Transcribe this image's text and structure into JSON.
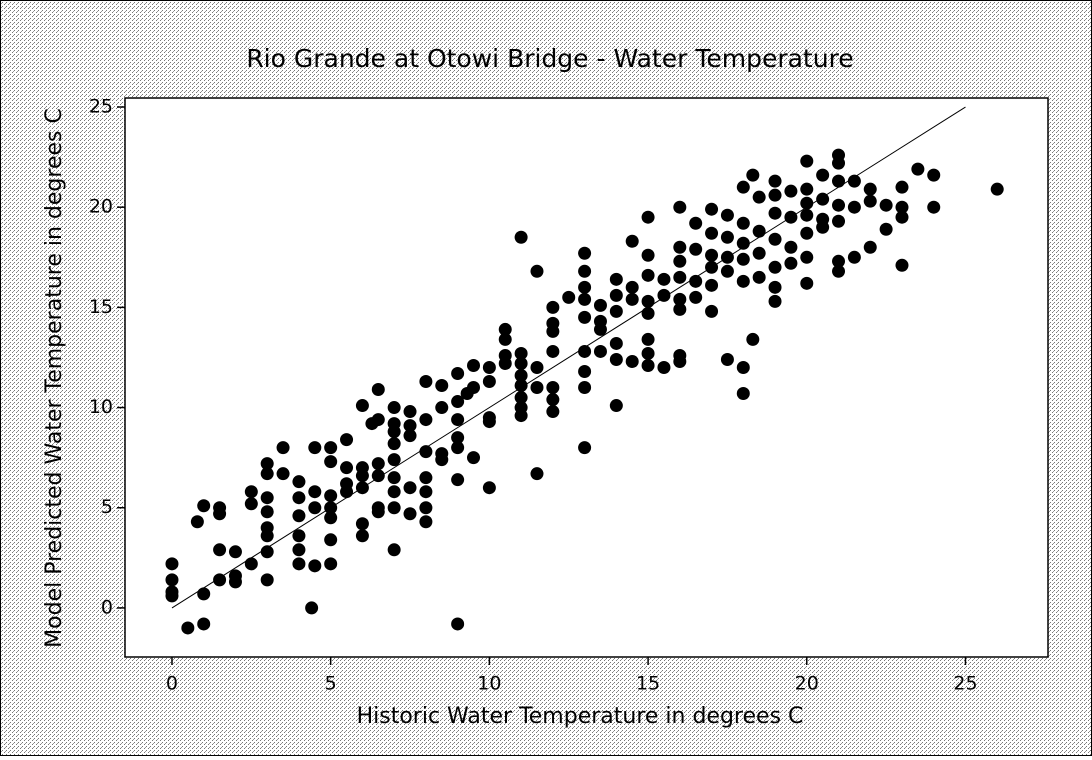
{
  "chart_data": {
    "type": "scatter",
    "title": "Rio Grande at Otowi Bridge - Water Temperature",
    "x_label": "Historic Water Temperature in degrees C",
    "y_label": "Model Predicted Water Temperature in degrees C",
    "xlim": [
      -1.48,
      27.6
    ],
    "ylim": [
      -2.45,
      25.45
    ],
    "xticks": [
      0,
      5,
      10,
      15,
      20,
      25
    ],
    "yticks": [
      0,
      5,
      10,
      15,
      20,
      25
    ],
    "color": "#000000",
    "reference_line": {
      "x": [
        0,
        25
      ],
      "y": [
        0,
        25
      ]
    },
    "x": [
      0,
      0,
      0,
      0,
      0.5,
      0.8,
      1,
      1,
      1,
      1.5,
      1.5,
      1.5,
      1.5,
      2,
      2,
      2,
      2.5,
      2.5,
      2.5,
      3,
      3,
      3,
      3,
      3,
      3,
      3,
      3,
      3.5,
      3.5,
      4,
      4,
      4,
      4,
      4,
      4,
      4.5,
      4.5,
      4.5,
      4.5,
      4.4,
      5,
      5,
      5,
      5,
      5,
      5,
      5,
      5.5,
      5.5,
      5.5,
      5.5,
      6,
      6,
      6,
      6,
      6,
      6,
      6.3,
      6.5,
      6.5,
      6.5,
      6.5,
      6.5,
      6.5,
      7,
      7,
      7,
      7,
      7,
      7,
      7,
      7,
      7,
      7.5,
      7.5,
      7.5,
      7.5,
      7.5,
      8,
      8,
      8,
      8,
      8,
      8,
      8,
      8.5,
      8.5,
      8.5,
      8.5,
      9,
      9,
      9,
      9,
      9,
      9,
      9,
      9.3,
      9.5,
      9.5,
      9.5,
      10,
      10,
      10,
      10,
      10,
      10.5,
      10.5,
      10.5,
      10.5,
      11,
      11,
      11,
      11,
      11,
      11,
      11,
      11,
      11.5,
      11.5,
      11.5,
      11.5,
      12,
      12,
      12,
      12,
      12,
      12,
      12,
      12.5,
      13,
      13,
      13,
      13,
      13,
      13,
      13,
      13,
      13,
      13.5,
      13.5,
      13.5,
      13.5,
      14,
      14,
      14,
      14,
      14,
      14,
      14.5,
      14.5,
      14.5,
      14.5,
      15,
      15,
      15,
      15,
      15,
      15,
      15,
      15,
      15.5,
      15.5,
      15.5,
      16,
      16,
      16,
      16,
      16,
      16,
      16,
      16,
      16.5,
      16.5,
      16.5,
      16.5,
      17,
      17,
      17,
      17,
      17,
      17,
      17.5,
      17.5,
      17.5,
      17.5,
      17.5,
      18,
      18,
      18,
      18,
      18,
      18,
      18,
      18.3,
      18.3,
      18.5,
      18.5,
      18.5,
      18.5,
      19,
      19,
      19,
      19,
      19,
      19,
      19,
      19.5,
      19.5,
      19.5,
      19.5,
      20,
      20,
      20,
      20,
      20,
      20,
      20,
      20.5,
      20.5,
      20.5,
      20.5,
      21,
      21,
      21,
      21,
      21,
      21,
      21,
      21.5,
      21.5,
      21.5,
      22,
      22,
      22,
      22.5,
      22.5,
      23,
      23,
      23,
      23,
      23.5,
      24,
      24,
      26
    ],
    "y": [
      2.2,
      1.4,
      0.8,
      0.6,
      -1,
      4.3,
      5.1,
      0.7,
      -0.8,
      5,
      4.7,
      2.9,
      1.4,
      2.8,
      1.6,
      1.3,
      5.8,
      5.2,
      2.2,
      7.2,
      6.7,
      5.5,
      4.8,
      4,
      3.6,
      2.8,
      1.4,
      8,
      6.7,
      6.3,
      5.5,
      4.6,
      3.6,
      2.9,
      2.2,
      8,
      5.8,
      5,
      2.1,
      0,
      8,
      7.3,
      5.6,
      5,
      4.5,
      3.4,
      2.2,
      8.4,
      7,
      6.2,
      5.8,
      10.1,
      7,
      6.6,
      6,
      4.2,
      3.6,
      9.2,
      10.9,
      9.4,
      7.2,
      6.6,
      5,
      4.8,
      10,
      9.2,
      8.8,
      8.2,
      7.4,
      6.5,
      5.8,
      5,
      2.9,
      9.8,
      9.1,
      8.6,
      6,
      4.7,
      11.3,
      9.4,
      7.8,
      6.5,
      5.8,
      5,
      4.3,
      11.1,
      10,
      7.7,
      7.4,
      11.7,
      10.3,
      9.4,
      8.5,
      8,
      6.4,
      -0.8,
      10.7,
      11,
      12.1,
      7.5,
      12,
      11.3,
      9.5,
      9.3,
      6,
      13.9,
      13.4,
      12.6,
      12.2,
      18.5,
      12.7,
      12.2,
      11.6,
      11.1,
      10.5,
      10,
      9.6,
      16.8,
      12,
      11,
      6.7,
      15,
      14.2,
      13.8,
      12.8,
      11,
      10.4,
      9.8,
      15.5,
      17.7,
      16.8,
      16,
      15.4,
      14.5,
      12.8,
      11.8,
      11,
      8,
      15.1,
      14.3,
      13.9,
      12.8,
      16.4,
      15.6,
      14.8,
      13.2,
      12.4,
      10.1,
      18.3,
      16,
      15.4,
      12.3,
      19.5,
      17.6,
      16.6,
      15.3,
      14.7,
      13.4,
      12.7,
      12.1,
      16.4,
      15.6,
      12,
      20,
      18,
      17.3,
      16.5,
      15.4,
      14.9,
      12.6,
      12.3,
      19.2,
      17.9,
      16.3,
      15.5,
      19.9,
      18.7,
      17.6,
      17,
      16.1,
      14.8,
      19.6,
      18.5,
      17.5,
      16.8,
      12.4,
      21,
      19.2,
      18.2,
      17.4,
      16.3,
      12,
      10.7,
      21.6,
      13.4,
      20.5,
      18.8,
      17.7,
      16.5,
      21.3,
      20.6,
      19.7,
      18.4,
      17,
      16,
      15.3,
      20.8,
      19.5,
      18,
      17.2,
      22.3,
      20.9,
      20.2,
      19.6,
      18.7,
      17.5,
      16.2,
      21.6,
      20.4,
      19.4,
      19,
      22.6,
      22.2,
      21.3,
      20.1,
      19.3,
      17.3,
      16.8,
      21.3,
      20,
      17.5,
      20.9,
      20.3,
      18,
      20.1,
      18.9,
      21,
      20,
      19.5,
      17.1,
      21.9,
      21.6,
      20,
      20.9
    ]
  }
}
